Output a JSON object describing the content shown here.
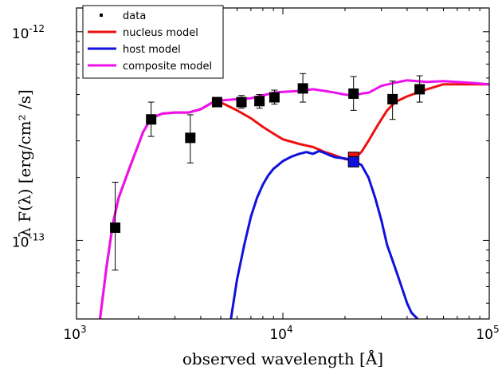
{
  "chart_data": {
    "type": "line",
    "xlabel": "observed wavelength [Å]",
    "ylabel": "λ F(λ) [erg/cm² /s]",
    "xscale": "log",
    "yscale": "log",
    "xlim": [
      1000,
      100000
    ],
    "ylim": [
      4.2e-14,
      1.3e-12
    ],
    "x_ticks": [
      {
        "value": 1000,
        "base": "10",
        "exp": "3"
      },
      {
        "value": 10000,
        "base": "10",
        "exp": "4"
      },
      {
        "value": 100000,
        "base": "10",
        "exp": "5"
      }
    ],
    "y_ticks": [
      {
        "value": 1e-13,
        "base": "10",
        "exp": "-13"
      },
      {
        "value": 1e-12,
        "base": "10",
        "exp": "-12"
      }
    ],
    "legend_position": "top-left",
    "series": [
      {
        "name": "data",
        "kind": "points",
        "color": "#000000",
        "points": [
          {
            "x": 1540,
            "y": 1.15e-13,
            "err": [
              7.2e-14,
              1.9e-13
            ]
          },
          {
            "x": 2300,
            "y": 3.8e-13,
            "err": [
              3.15e-13,
              4.6e-13
            ]
          },
          {
            "x": 3560,
            "y": 3.1e-13,
            "err": [
              2.35e-13,
              4e-13
            ]
          },
          {
            "x": 4800,
            "y": 4.6e-13,
            "err": [
              4.4e-13,
              4.8e-13
            ]
          },
          {
            "x": 6300,
            "y": 4.6e-13,
            "err": [
              4.3e-13,
              4.95e-13
            ]
          },
          {
            "x": 7700,
            "y": 4.65e-13,
            "err": [
              4.3e-13,
              5e-13
            ]
          },
          {
            "x": 9100,
            "y": 4.85e-13,
            "err": [
              4.5e-13,
              5.25e-13
            ]
          },
          {
            "x": 12500,
            "y": 5.35e-13,
            "err": [
              4.6e-13,
              6.3e-13
            ]
          },
          {
            "x": 22000,
            "y": 5.05e-13,
            "err": [
              4.2e-13,
              6.1e-13
            ]
          },
          {
            "x": 34000,
            "y": 4.75e-13,
            "err": [
              3.8e-13,
              5.8e-13
            ]
          },
          {
            "x": 46000,
            "y": 5.3e-13,
            "err": [
              4.6e-13,
              6.15e-13
            ]
          }
        ]
      },
      {
        "name": "nucleus model",
        "kind": "line",
        "color": "#ee1111",
        "x": [
          1300,
          1400,
          1500,
          1600,
          1800,
          2000,
          2100,
          2300,
          2600,
          3000,
          3500,
          4000,
          4500,
          4800,
          5200,
          6000,
          7000,
          8000,
          9000,
          10000,
          12000,
          14000,
          16000,
          18000,
          20000,
          22000,
          24000,
          26000,
          28000,
          30000,
          32000,
          35000,
          40000,
          50000,
          60000,
          80000,
          100000
        ],
        "y": [
          4.2e-14,
          7.5e-14,
          1.2e-13,
          1.6e-13,
          2.2e-13,
          2.9e-13,
          3.3e-13,
          3.85e-13,
          4.05e-13,
          4.1e-13,
          4.1e-13,
          4.25e-13,
          4.55e-13,
          4.65e-13,
          4.5e-13,
          4.2e-13,
          3.85e-13,
          3.5e-13,
          3.25e-13,
          3.05e-13,
          2.9e-13,
          2.8e-13,
          2.65e-13,
          2.55e-13,
          2.45e-13,
          2.45e-13,
          2.65e-13,
          3e-13,
          3.4e-13,
          3.8e-13,
          4.2e-13,
          4.6e-13,
          4.9e-13,
          5.3e-13,
          5.6e-13,
          5.6e-13,
          5.6e-13
        ]
      },
      {
        "name": "host model",
        "kind": "line",
        "color": "#1111dd",
        "x": [
          5600,
          6000,
          6500,
          7000,
          7500,
          8000,
          8500,
          9000,
          9500,
          10000,
          11000,
          12000,
          13000,
          14000,
          15000,
          16000,
          17000,
          18000,
          20000,
          22000,
          24000,
          26000,
          28000,
          30000,
          32000,
          34000,
          36000,
          38000,
          40000,
          42000,
          45000
        ],
        "y": [
          4.2e-14,
          6.5e-14,
          9.5e-14,
          1.3e-13,
          1.6e-13,
          1.85e-13,
          2.05e-13,
          2.2e-13,
          2.3e-13,
          2.4e-13,
          2.52e-13,
          2.6e-13,
          2.65e-13,
          2.6e-13,
          2.68e-13,
          2.62e-13,
          2.55e-13,
          2.5e-13,
          2.47e-13,
          2.4e-13,
          2.3e-13,
          2e-13,
          1.6e-13,
          1.25e-13,
          9.5e-14,
          8e-14,
          6.8e-14,
          5.8e-14,
          5e-14,
          4.5e-14,
          4.2e-14
        ]
      },
      {
        "name": "composite model",
        "kind": "line",
        "color": "#ee11ee",
        "x": [
          1300,
          1400,
          1500,
          1600,
          1800,
          2000,
          2100,
          2300,
          2600,
          3000,
          3500,
          4000,
          4500,
          4800,
          5200,
          6000,
          7000,
          8000,
          9000,
          10000,
          12000,
          14000,
          16000,
          18000,
          20000,
          22000,
          24000,
          26000,
          28000,
          30000,
          35000,
          40000,
          50000,
          60000,
          80000,
          100000
        ],
        "y": [
          4.2e-14,
          7.5e-14,
          1.2e-13,
          1.6e-13,
          2.2e-13,
          2.9e-13,
          3.3e-13,
          3.85e-13,
          4.05e-13,
          4.1e-13,
          4.1e-13,
          4.25e-13,
          4.55e-13,
          4.65e-13,
          4.7e-13,
          4.75e-13,
          4.8e-13,
          4.95e-13,
          5.1e-13,
          5.15e-13,
          5.2e-13,
          5.3e-13,
          5.2e-13,
          5.1e-13,
          5e-13,
          4.95e-13,
          5.05e-13,
          5.1e-13,
          5.3e-13,
          5.5e-13,
          5.7e-13,
          5.85e-13,
          5.75e-13,
          5.8e-13,
          5.7e-13,
          5.6e-13
        ]
      }
    ],
    "highlight_points": [
      {
        "series": "nucleus model",
        "x": 22000,
        "y": 2.5e-13,
        "color": "#ee1111"
      },
      {
        "series": "host model",
        "x": 22000,
        "y": 2.38e-13,
        "color": "#1111dd"
      }
    ]
  }
}
